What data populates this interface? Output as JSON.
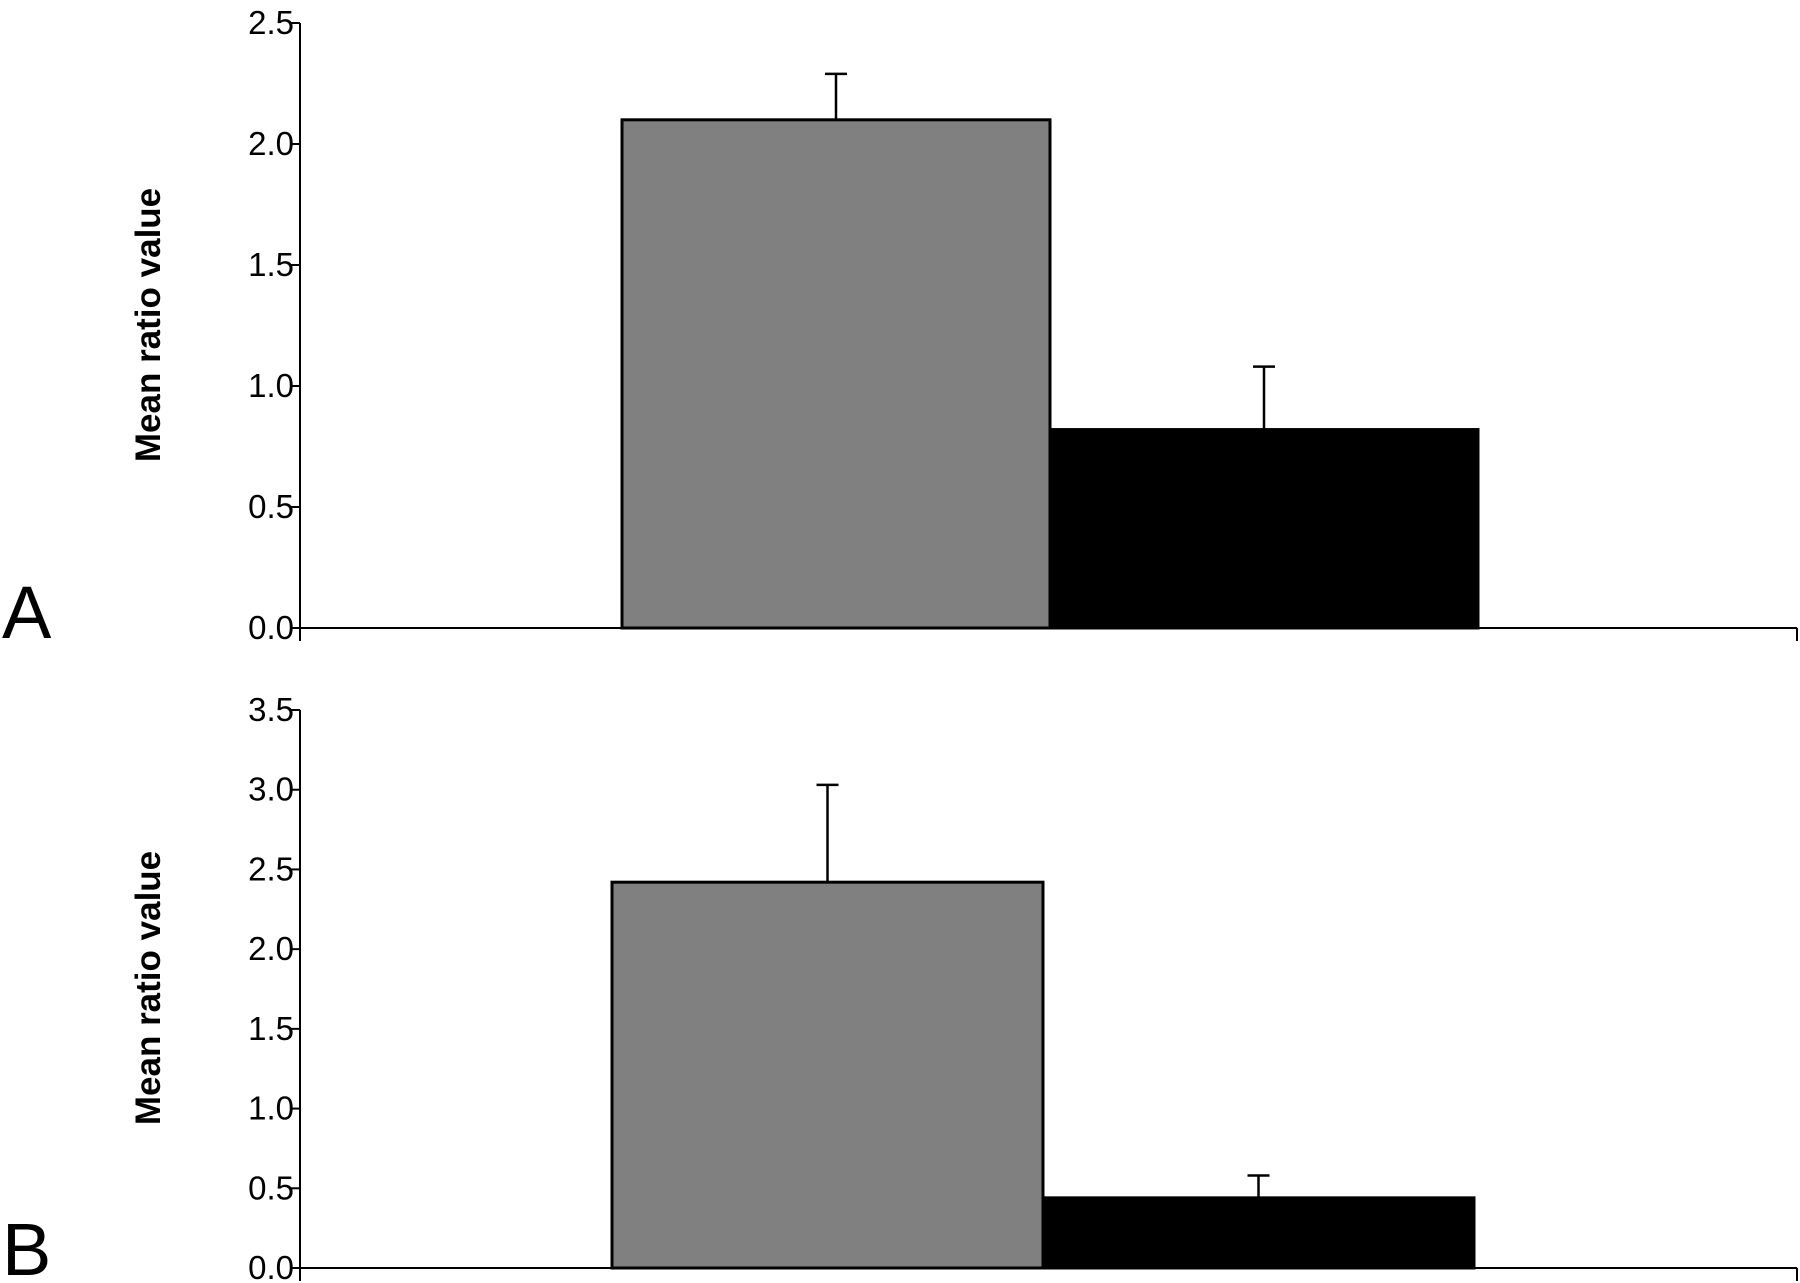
{
  "chart_data": [
    {
      "type": "bar",
      "panel_label": "A",
      "ylabel": "Mean ratio value",
      "ylim": [
        0,
        2.5
      ],
      "yticks": [
        "0.0",
        "0.5",
        "1.0",
        "1.5",
        "2.0",
        "2.5"
      ],
      "series": [
        {
          "values": [
            2.1
          ],
          "errors": [
            0.19
          ],
          "color": "#808080"
        },
        {
          "values": [
            0.82
          ],
          "errors": [
            0.26
          ],
          "color": "#000000"
        }
      ]
    },
    {
      "type": "bar",
      "panel_label": "B",
      "ylabel": "Mean ratio value",
      "ylim": [
        0,
        3.5
      ],
      "yticks": [
        "0.0",
        "0.5",
        "1.0",
        "1.5",
        "2.0",
        "2.5",
        "3.0",
        "3.5"
      ],
      "series": [
        {
          "values": [
            2.42
          ],
          "errors": [
            0.61
          ],
          "color": "#808080"
        },
        {
          "values": [
            0.44
          ],
          "errors": [
            0.14
          ],
          "color": "#000000"
        }
      ]
    }
  ]
}
